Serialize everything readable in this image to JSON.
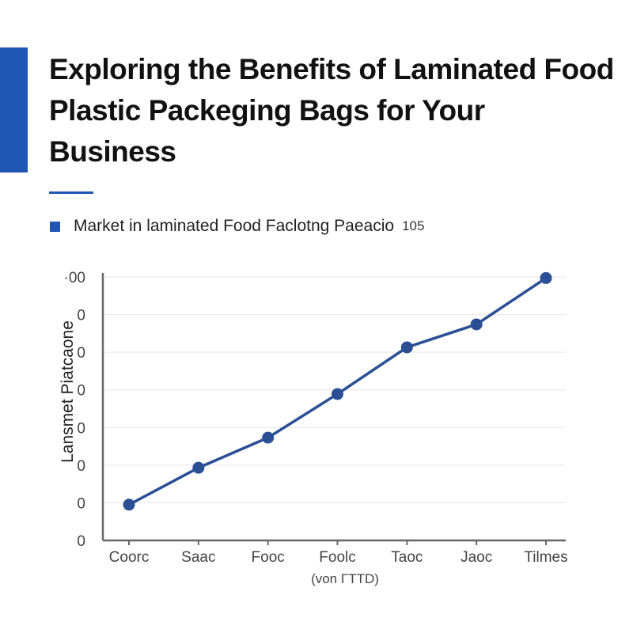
{
  "title": "Exploring the Benefits of Laminated Food Plastic Packeging Bags for Your Business",
  "colors": {
    "accent": "#1f56b3",
    "line": "#2b4f95",
    "grid": "#e6e6e6",
    "axis": "#666666"
  },
  "legend": {
    "label": "Market in laminated Food Faclotng Paeacio",
    "extra": "105"
  },
  "chart_data": {
    "type": "line",
    "title": "",
    "xlabel": "(von ΓTTD)",
    "ylabel": "Lansmet Piatcaone",
    "categories": [
      "Coorc",
      "Saac",
      "Fooc",
      "Foolc",
      "Taoc",
      "Jaoc",
      "Tilmes"
    ],
    "y_tick_labels": [
      "0",
      "0",
      "0",
      "0",
      "0",
      "0",
      "0",
      "·00"
    ],
    "ylim": [
      0,
      7
    ],
    "grid": true,
    "legend_position": "top-left",
    "series": [
      {
        "name": "Market in laminated Food Faclotng Paeacio",
        "values": [
          0.95,
          1.93,
          2.73,
          3.89,
          5.13,
          5.74,
          6.97
        ]
      }
    ]
  }
}
